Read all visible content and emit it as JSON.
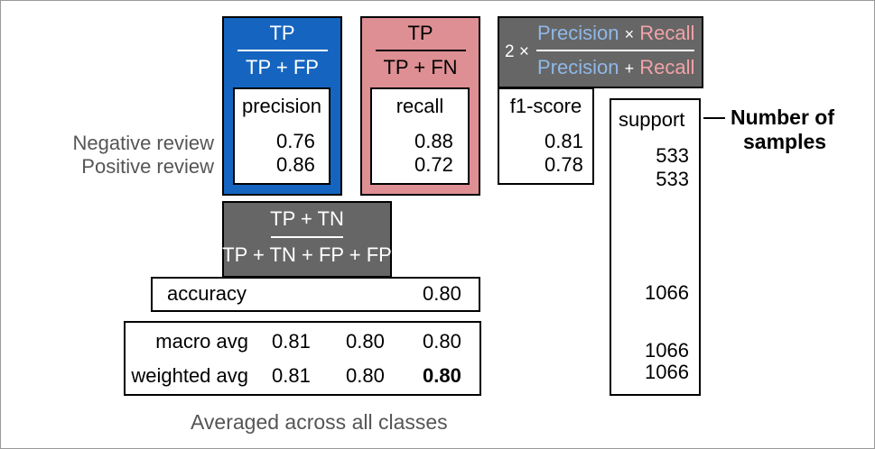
{
  "rows": {
    "negative": "Negative review",
    "positive": "Positive review"
  },
  "precision": {
    "numerator": "TP",
    "denominator": "TP + FP",
    "header": "precision",
    "negative": "0.76",
    "positive": "0.86",
    "color": "#1565c0"
  },
  "recall": {
    "numerator": "TP",
    "denominator": "TP + FN",
    "header": "recall",
    "negative": "0.88",
    "positive": "0.72",
    "color": "#de8f94"
  },
  "f1": {
    "factor": "2 ×",
    "num_a": "Precision",
    "num_op": "×",
    "num_b": "Recall",
    "den_a": "Precision",
    "den_op": "+",
    "den_b": "Recall",
    "header": "f1-score",
    "negative": "0.81",
    "positive": "0.78",
    "color_precision": "#8fb8e8",
    "color_recall": "#f0a3a8",
    "box_color": "#666666"
  },
  "support": {
    "header": "support",
    "negative": "533",
    "positive": "533",
    "accuracy": "1066",
    "macro": "1066",
    "weighted": "1066",
    "annotation_line1": "Number of",
    "annotation_line2": "samples"
  },
  "accuracy": {
    "numerator": "TP + TN",
    "denominator": "TP + TN + FP + FP",
    "label": "accuracy",
    "value": "0.80",
    "box_color": "#666666"
  },
  "averages": {
    "macro_label": "macro avg",
    "macro_precision": "0.81",
    "macro_recall": "0.80",
    "macro_f1": "0.80",
    "weighted_label": "weighted avg",
    "weighted_precision": "0.81",
    "weighted_recall": "0.80",
    "weighted_f1": "0.80",
    "caption": "Averaged across all classes"
  }
}
